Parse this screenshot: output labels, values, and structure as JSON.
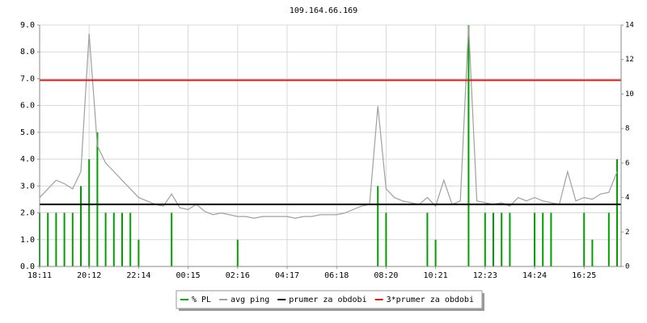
{
  "chart_data": {
    "type": "line",
    "title": "109.164.66.169",
    "categories": [
      "18:11",
      null,
      null,
      null,
      null,
      null,
      "20:12",
      null,
      null,
      null,
      null,
      null,
      "22:14",
      null,
      null,
      null,
      null,
      null,
      "00:15",
      null,
      null,
      null,
      null,
      null,
      "02:16",
      null,
      null,
      null,
      null,
      null,
      "04:17",
      null,
      null,
      null,
      null,
      null,
      "06:18",
      null,
      null,
      null,
      null,
      null,
      "08:20",
      null,
      null,
      null,
      null,
      null,
      "10:21",
      null,
      null,
      null,
      null,
      null,
      "12:23",
      null,
      null,
      null,
      null,
      null,
      "14:24",
      null,
      null,
      null,
      null,
      null,
      "16:25",
      null,
      null,
      null,
      null
    ],
    "series": [
      {
        "name": "% PL",
        "type": "bar",
        "axis": "y",
        "color": "#00a000",
        "values": [
          2,
          2,
          2,
          2,
          2,
          3,
          4,
          5,
          2,
          2,
          2,
          2,
          1,
          0,
          0,
          0,
          2,
          0,
          0,
          0,
          0,
          0,
          0,
          0,
          1,
          0,
          0,
          0,
          0,
          0,
          0,
          0,
          0,
          0,
          0,
          0,
          0,
          0,
          0,
          0,
          0,
          3,
          2,
          0,
          0,
          0,
          0,
          2,
          1,
          0,
          0,
          0,
          9,
          0,
          2,
          2,
          2,
          2,
          0,
          0,
          2,
          2,
          2,
          0,
          0,
          0,
          2,
          1,
          0,
          2,
          4
        ]
      },
      {
        "name": "avg ping",
        "type": "line",
        "axis": "y2",
        "color": "#a0a0a0",
        "values": [
          4.0,
          4.5,
          5.0,
          4.8,
          4.5,
          5.5,
          13.5,
          7.0,
          6.0,
          5.5,
          5.0,
          4.5,
          4.0,
          3.8,
          3.6,
          3.5,
          4.2,
          3.4,
          3.3,
          3.6,
          3.2,
          3.0,
          3.1,
          3.0,
          2.9,
          2.9,
          2.8,
          2.9,
          2.9,
          2.9,
          2.9,
          2.8,
          2.9,
          2.9,
          3.0,
          3.0,
          3.0,
          3.1,
          3.3,
          3.5,
          3.6,
          9.3,
          4.5,
          4.0,
          3.8,
          3.7,
          3.6,
          4.0,
          3.5,
          5.0,
          3.6,
          3.8,
          14.0,
          3.8,
          3.7,
          3.6,
          3.7,
          3.5,
          4.0,
          3.8,
          4.0,
          3.8,
          3.7,
          3.6,
          5.5,
          3.8,
          4.0,
          3.9,
          4.2,
          4.3,
          5.5
        ]
      }
    ],
    "reference_lines": [
      {
        "name": "prumer za obdobi",
        "color": "#000000",
        "value": 3.6,
        "axis": "y2"
      },
      {
        "name": "3*prumer za obdobi",
        "color": "#cc2020",
        "value": 10.8,
        "axis": "y2"
      }
    ],
    "ylim": [
      0,
      9
    ],
    "yticks": [
      {
        "value": 0,
        "label": "0.0"
      },
      {
        "value": 1,
        "label": "1.0"
      },
      {
        "value": 2,
        "label": "2.0"
      },
      {
        "value": 3,
        "label": "3.0"
      },
      {
        "value": 4,
        "label": "4.0"
      },
      {
        "value": 5,
        "label": "5.0"
      },
      {
        "value": 6,
        "label": "6.0"
      },
      {
        "value": 7,
        "label": "7.0"
      },
      {
        "value": 8,
        "label": "8.0"
      },
      {
        "value": 9,
        "label": "9.0"
      }
    ],
    "y2lim": [
      0,
      14
    ],
    "y2ticks": [
      0,
      2,
      4,
      6,
      8,
      10,
      12,
      14
    ],
    "ytick_color": "#00a000",
    "grid": true
  }
}
